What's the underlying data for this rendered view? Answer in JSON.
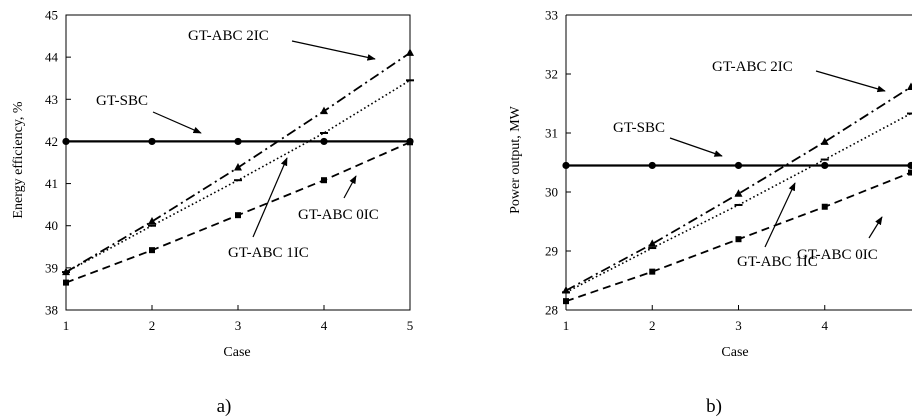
{
  "chart_data": [
    {
      "type": "line",
      "panel_label": "a)",
      "xlabel": "Case",
      "ylabel": "Energy efficiency, %",
      "x": [
        1,
        2,
        3,
        4,
        5
      ],
      "xlim": [
        1,
        5
      ],
      "ylim": [
        38,
        45
      ],
      "xticks": [
        "1",
        "2",
        "3",
        "4",
        "5"
      ],
      "yticks": [
        "38",
        "39",
        "40",
        "41",
        "42",
        "43",
        "44",
        "45"
      ],
      "grid": false,
      "legend": "none",
      "series": [
        {
          "name": "GT-SBC",
          "style": "solid",
          "marker": "circle",
          "values": [
            42.0,
            42.0,
            42.0,
            42.0,
            42.0
          ]
        },
        {
          "name": "GT-ABC 0IC",
          "style": "dashed",
          "marker": "square",
          "values": [
            38.65,
            39.42,
            40.25,
            41.08,
            41.98
          ]
        },
        {
          "name": "GT-ABC 1IC",
          "style": "dotted",
          "marker": "dash",
          "values": [
            38.9,
            40.0,
            41.08,
            42.2,
            43.45
          ]
        },
        {
          "name": "GT-ABC 2IC",
          "style": "dashdot",
          "marker": "triangle",
          "values": [
            38.9,
            40.1,
            41.38,
            42.72,
            44.1
          ]
        }
      ],
      "annotations": [
        "GT-ABC 2IC",
        "GT-SBC",
        "GT-ABC 1IC",
        "GT-ABC 0IC"
      ]
    },
    {
      "type": "line",
      "panel_label": "b)",
      "xlabel": "Case",
      "ylabel": "Power output, MW",
      "x": [
        1,
        2,
        3,
        4,
        5
      ],
      "xlim": [
        1,
        5
      ],
      "ylim": [
        28,
        33
      ],
      "xticks": [
        "1",
        "2",
        "3",
        "4"
      ],
      "yticks": [
        "28",
        "29",
        "30",
        "31",
        "32",
        "33"
      ],
      "grid": false,
      "legend": "none",
      "series": [
        {
          "name": "GT-SBC",
          "style": "solid",
          "marker": "circle",
          "values": [
            30.45,
            30.45,
            30.45,
            30.45,
            30.45
          ]
        },
        {
          "name": "GT-ABC 0IC",
          "style": "dashed",
          "marker": "square",
          "values": [
            28.15,
            28.65,
            29.2,
            29.75,
            30.33
          ]
        },
        {
          "name": "GT-ABC 1IC",
          "style": "dotted",
          "marker": "dash",
          "values": [
            28.3,
            29.05,
            29.78,
            30.55,
            31.33
          ]
        },
        {
          "name": "GT-ABC 2IC",
          "style": "dashdot",
          "marker": "triangle",
          "values": [
            28.33,
            29.12,
            29.97,
            30.85,
            31.78
          ]
        }
      ],
      "annotations": [
        "GT-ABC 2IC",
        "GT-SBC",
        "GT-ABC 0IC",
        "GT-ABC 1IC"
      ]
    }
  ]
}
